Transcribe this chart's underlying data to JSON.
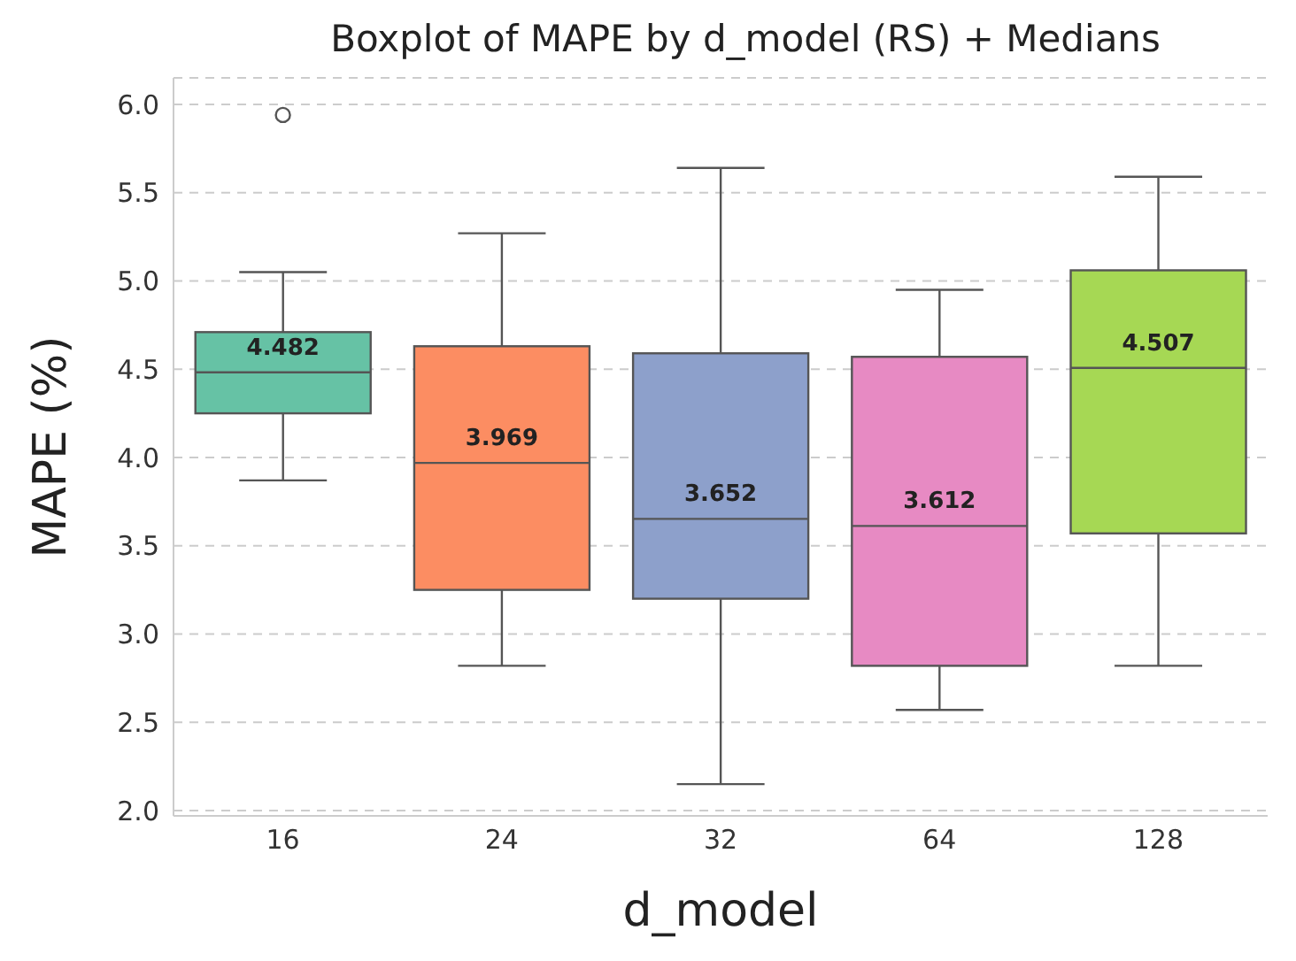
{
  "chart_data": {
    "type": "box",
    "title": "Boxplot of MAPE by d_model (RS) + Medians",
    "xlabel": "d_model",
    "ylabel": "MAPE (%)",
    "categories": [
      "16",
      "24",
      "32",
      "64",
      "128"
    ],
    "colors": [
      "#66c2a5",
      "#fc8d62",
      "#8da0cb",
      "#e78ac3",
      "#a6d854"
    ],
    "boxes": [
      {
        "low": 3.87,
        "q1": 4.25,
        "median": 4.482,
        "q3": 4.71,
        "high": 5.05,
        "outliers": [
          5.94
        ]
      },
      {
        "low": 2.82,
        "q1": 3.25,
        "median": 3.969,
        "q3": 4.63,
        "high": 5.27
      },
      {
        "low": 2.15,
        "q1": 3.2,
        "median": 3.652,
        "q3": 4.59,
        "high": 5.64
      },
      {
        "low": 2.57,
        "q1": 2.82,
        "median": 3.612,
        "q3": 4.57,
        "high": 4.95
      },
      {
        "low": 2.82,
        "q1": 3.57,
        "median": 4.507,
        "q3": 5.06,
        "high": 5.59
      }
    ],
    "value_labels": [
      "4.482",
      "3.969",
      "3.652",
      "3.612",
      "4.507"
    ],
    "ylim": [
      1.97,
      6.15
    ],
    "yticks": [
      {
        "value": 2,
        "label": "2.0"
      },
      {
        "value": 2.5,
        "label": "2.5"
      },
      {
        "value": 3,
        "label": "3.0"
      },
      {
        "value": 3.5,
        "label": "3.5"
      },
      {
        "value": 4,
        "label": "4.0"
      },
      {
        "value": 4.5,
        "label": "4.5"
      },
      {
        "value": 5,
        "label": "5.0"
      },
      {
        "value": 5.5,
        "label": "5.5"
      },
      {
        "value": 6,
        "label": "6.0"
      }
    ],
    "grid": "y",
    "marker": "circle"
  }
}
